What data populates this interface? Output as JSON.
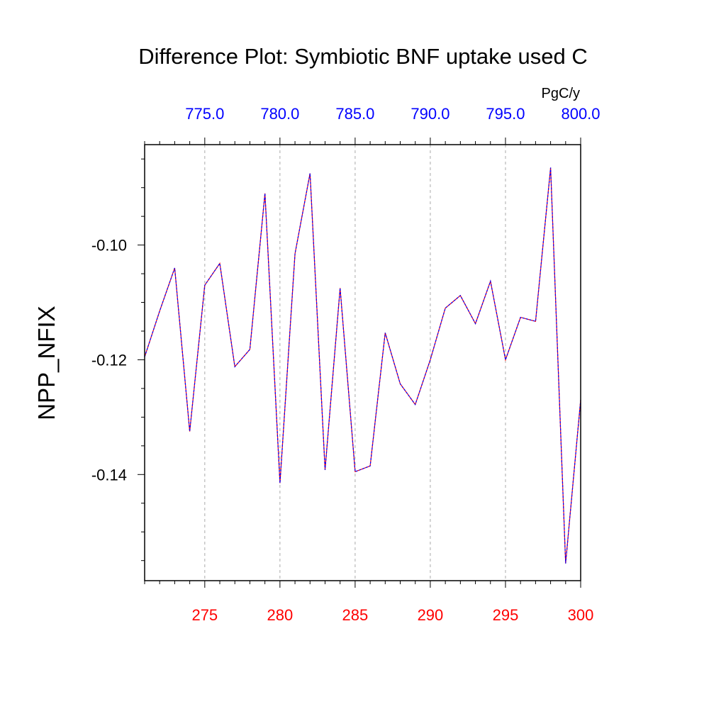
{
  "chart_data": {
    "type": "line",
    "title": "Difference Plot: Symbiotic BNF uptake used C",
    "ylabel": "NPP_NFIX",
    "top_axis_unit": "PgC/y",
    "xlim": [
      271,
      300
    ],
    "ylim": [
      -0.1585,
      -0.0825
    ],
    "x_ticks": [
      275,
      280,
      285,
      290,
      295,
      300
    ],
    "x_tick_labels": [
      "275",
      "280",
      "285",
      "290",
      "295",
      "300"
    ],
    "top_ticks": [
      275,
      280,
      285,
      290,
      295,
      300
    ],
    "top_tick_labels": [
      "775.0",
      "780.0",
      "785.0",
      "790.0",
      "795.0",
      "800.0"
    ],
    "y_ticks": [
      -0.14,
      -0.12,
      -0.1
    ],
    "y_tick_labels": [
      "-0.14",
      "-0.12",
      "-0.10"
    ],
    "grid": "vertical dashed",
    "colors": {
      "bottom_tick_labels": "#ff0000",
      "top_tick_labels": "#0000ff",
      "series_a": "#ff0000",
      "series_b": "#0000ff"
    },
    "x": [
      271,
      272,
      273,
      274,
      275,
      276,
      277,
      278,
      279,
      280,
      281,
      282,
      283,
      284,
      285,
      286,
      287,
      288,
      289,
      290,
      291,
      292,
      293,
      294,
      295,
      296,
      297,
      298,
      299,
      300
    ],
    "series": [
      {
        "values": [
          -0.1195,
          -0.1115,
          -0.104,
          -0.1325,
          -0.107,
          -0.1032,
          -0.1212,
          -0.1182,
          -0.091,
          -0.1415,
          -0.1015,
          -0.0875,
          -0.1392,
          -0.1075,
          -0.1395,
          -0.1385,
          -0.1153,
          -0.1242,
          -0.1278,
          -0.12,
          -0.111,
          -0.1088,
          -0.1137,
          -0.1063,
          -0.12,
          -0.1126,
          -0.1133,
          -0.0865,
          -0.1555,
          -0.127
        ]
      },
      {
        "values": [
          -0.1195,
          -0.1115,
          -0.104,
          -0.1325,
          -0.107,
          -0.1032,
          -0.1212,
          -0.1182,
          -0.091,
          -0.1415,
          -0.1015,
          -0.0875,
          -0.1392,
          -0.1075,
          -0.1395,
          -0.1385,
          -0.1153,
          -0.1242,
          -0.1278,
          -0.12,
          -0.111,
          -0.1088,
          -0.1137,
          -0.1063,
          -0.12,
          -0.1126,
          -0.1133,
          -0.0865,
          -0.1555,
          -0.127
        ]
      }
    ]
  }
}
